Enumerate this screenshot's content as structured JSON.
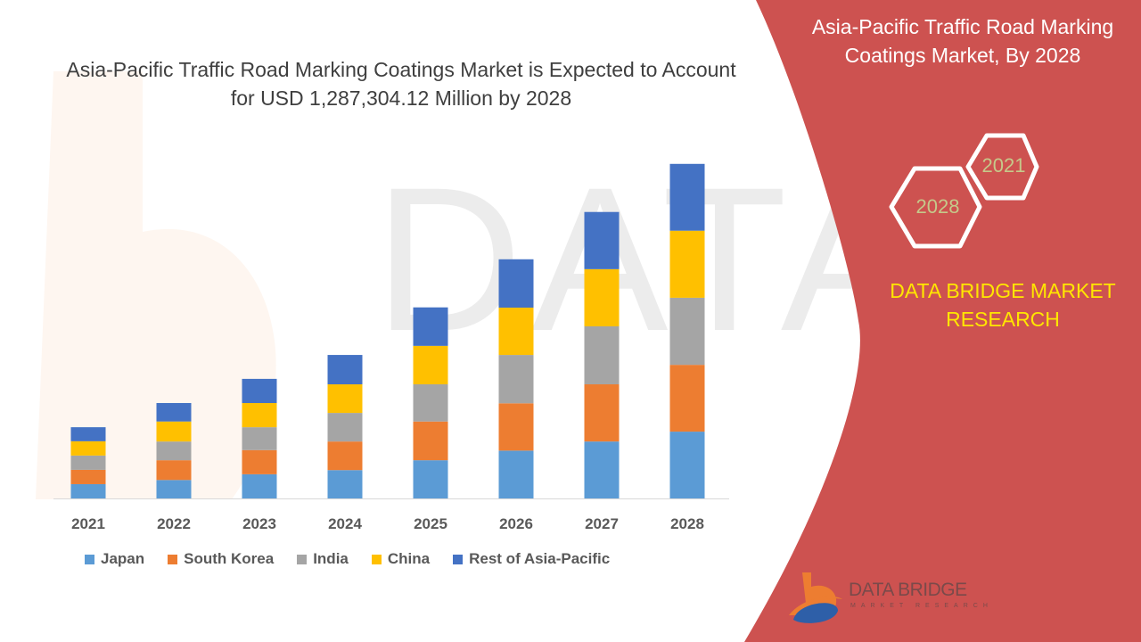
{
  "colors": {
    "panel": "#cd5250",
    "japan": "#5b9bd5",
    "south_korea": "#ed7d31",
    "india": "#a5a5a5",
    "china": "#ffc000",
    "rest": "#4472c4",
    "brand_text": "#ffe600"
  },
  "side_panel": {
    "title": "Asia-Pacific Traffic Road Marking Coatings Market, By 2028",
    "hex_2028": "2028",
    "hex_2021": "2021",
    "brand_line1": "DATA BRIDGE MARKET",
    "brand_line2": "RESEARCH",
    "logo_text": "DATA BRIDGE",
    "logo_sub": "MARKET RESEARCH"
  },
  "chart_data": {
    "type": "bar",
    "stacked": true,
    "title": "Asia-Pacific Traffic Road Marking Coatings Market is Expected to Account for USD 1,287,304.12 Million by 2028",
    "xlabel": "",
    "ylabel": "",
    "ylim": [
      0,
      1300000
    ],
    "grid": false,
    "legend_position": "bottom",
    "categories": [
      "2021",
      "2022",
      "2023",
      "2024",
      "2025",
      "2026",
      "2027",
      "2028"
    ],
    "series": [
      {
        "name": "Japan",
        "color": "#5b9bd5",
        "values": [
          55000,
          71000,
          93000,
          109000,
          147000,
          184000,
          219000,
          257000
        ]
      },
      {
        "name": "South Korea",
        "color": "#ed7d31",
        "values": [
          55000,
          76000,
          93000,
          110000,
          149000,
          182000,
          220000,
          257000
        ]
      },
      {
        "name": "India",
        "color": "#a5a5a5",
        "values": [
          55000,
          72000,
          88000,
          110000,
          143000,
          186000,
          223000,
          258000
        ]
      },
      {
        "name": "China",
        "color": "#ffc000",
        "values": [
          55000,
          77000,
          93000,
          110000,
          148000,
          182000,
          220000,
          258000
        ]
      },
      {
        "name": "Rest of Asia-Pacific",
        "color": "#4472c4",
        "values": [
          54000,
          71000,
          93000,
          113000,
          148000,
          186000,
          220000,
          257000
        ]
      }
    ]
  }
}
